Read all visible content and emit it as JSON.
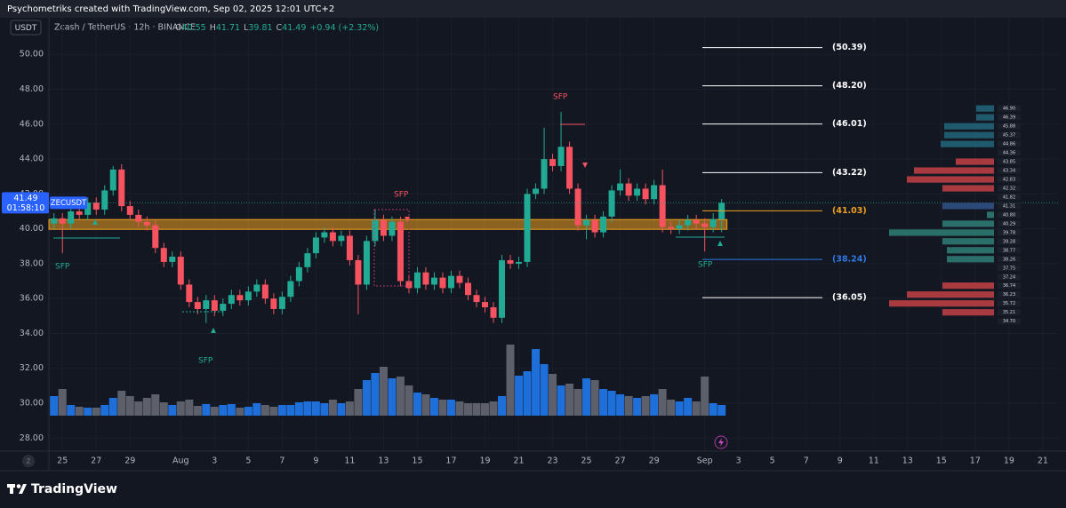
{
  "header": {
    "credit": "Psychometriks created with TradingView.com, Sep 02, 2025 12:01 UTC+2",
    "brand": "TradingView"
  },
  "chart_data": {
    "type": "candlestick",
    "quote_currency": "USDT",
    "symbol": "Zcash / TetherUS · 12h · BINANCE",
    "ticker": "ZECUSDT",
    "legend_labels": [
      "O",
      "H",
      "L",
      "C"
    ],
    "change": "+0.94 (+2.32%)",
    "countdown": "01:58:10",
    "up_color": "#22ab94",
    "down_color": "#f7525f",
    "volume_up_color": "#1e6fd9",
    "volume_down_color": "#5d606b",
    "x": [
      -0.5,
      0,
      0.5,
      1,
      1.5,
      2,
      2.5,
      3,
      3.5,
      4,
      4.5,
      5,
      5.5,
      6,
      6.5,
      7,
      7.5,
      8,
      8.5,
      9,
      9.5,
      10,
      10.5,
      11,
      11.5,
      12,
      12.5,
      13,
      13.5,
      14,
      14.5,
      15,
      15.5,
      16,
      16.5,
      17,
      17.5,
      18,
      18.5,
      19,
      19.5,
      20,
      20.5,
      21,
      21.5,
      22,
      22.5,
      23,
      23.5,
      24,
      24.5,
      25,
      25.5,
      26,
      26.5,
      27,
      27.5,
      28,
      28.5,
      29,
      29.5,
      30,
      30.5,
      31,
      31.5,
      32,
      32.5,
      33,
      33.5,
      34,
      34.5,
      35,
      35.5,
      36,
      36.5,
      37,
      37.5,
      38,
      38.5,
      39
    ],
    "open": [
      40.3,
      40.6,
      40.3,
      41.0,
      40.8,
      41.5,
      41.1,
      42.2,
      43.4,
      41.3,
      40.8,
      40.4,
      40.2,
      38.9,
      38.1,
      38.4,
      36.8,
      35.8,
      35.4,
      35.9,
      35.3,
      35.7,
      36.2,
      35.9,
      36.4,
      36.8,
      36.0,
      35.4,
      36.1,
      37.0,
      37.8,
      38.6,
      39.5,
      39.8,
      39.3,
      39.6,
      38.2,
      36.8,
      39.3,
      40.5,
      39.6,
      40.4,
      37.0,
      36.6,
      37.5,
      36.8,
      37.2,
      36.6,
      37.3,
      36.9,
      36.2,
      35.8,
      35.5,
      34.9,
      38.2,
      38.0,
      38.1,
      42.0,
      42.3,
      44.0,
      43.6,
      44.7,
      42.3,
      40.2,
      40.5,
      39.8,
      40.7,
      42.2,
      42.6,
      41.9,
      42.3,
      41.7,
      42.5,
      40.1,
      40.0,
      40.2,
      40.5,
      40.3,
      40.1,
      40.55
    ],
    "high": [
      40.9,
      40.9,
      41.3,
      41.3,
      41.8,
      41.8,
      42.5,
      43.6,
      43.7,
      41.6,
      41.1,
      40.7,
      40.5,
      39.2,
      38.7,
      38.7,
      37.1,
      36.1,
      36.2,
      36.2,
      36.0,
      36.5,
      36.5,
      36.7,
      37.1,
      37.1,
      36.3,
      36.4,
      37.3,
      38.1,
      38.9,
      39.8,
      40.1,
      40.1,
      39.9,
      39.9,
      38.5,
      39.6,
      41.1,
      40.8,
      40.7,
      40.7,
      37.3,
      37.8,
      37.8,
      37.5,
      37.5,
      37.6,
      37.6,
      37.2,
      36.5,
      36.1,
      35.8,
      38.5,
      38.5,
      38.4,
      42.3,
      42.6,
      45.8,
      44.3,
      46.7,
      45.0,
      42.6,
      40.8,
      40.8,
      41.0,
      42.5,
      43.4,
      42.9,
      42.6,
      42.6,
      42.8,
      43.4,
      40.4,
      40.5,
      40.8,
      40.8,
      40.6,
      40.9,
      41.71
    ],
    "low": [
      40.0,
      38.6,
      40.0,
      40.5,
      40.5,
      40.8,
      40.8,
      41.9,
      41.0,
      40.5,
      40.1,
      39.9,
      38.6,
      37.8,
      37.8,
      36.5,
      35.5,
      35.1,
      34.6,
      35.0,
      35.0,
      35.4,
      35.6,
      35.6,
      36.1,
      35.7,
      35.1,
      35.1,
      35.8,
      36.7,
      37.5,
      38.3,
      39.2,
      39.0,
      39.0,
      37.9,
      35.1,
      36.5,
      39.0,
      39.3,
      39.3,
      36.7,
      36.3,
      36.3,
      36.5,
      36.5,
      36.3,
      36.3,
      36.6,
      35.9,
      35.5,
      35.2,
      34.6,
      34.6,
      37.7,
      37.7,
      37.8,
      41.7,
      42.0,
      43.3,
      43.3,
      42.0,
      39.9,
      39.4,
      39.5,
      39.5,
      40.4,
      41.9,
      41.6,
      41.6,
      41.4,
      41.4,
      39.8,
      39.7,
      39.7,
      39.9,
      40.0,
      38.7,
      39.8,
      39.81
    ],
    "close": [
      40.6,
      40.3,
      41.0,
      40.8,
      41.5,
      41.1,
      42.2,
      43.4,
      41.3,
      40.8,
      40.4,
      40.2,
      38.9,
      38.1,
      38.4,
      36.8,
      35.8,
      35.4,
      35.9,
      35.3,
      35.7,
      36.2,
      35.9,
      36.4,
      36.8,
      36.0,
      35.4,
      36.1,
      37.0,
      37.8,
      38.6,
      39.5,
      39.8,
      39.3,
      39.6,
      38.2,
      36.8,
      39.3,
      40.5,
      39.6,
      40.4,
      37.0,
      36.6,
      37.5,
      36.8,
      37.2,
      36.6,
      37.3,
      36.9,
      36.2,
      35.8,
      35.5,
      34.9,
      38.2,
      38.0,
      38.1,
      42.0,
      42.3,
      44.0,
      43.6,
      44.7,
      42.3,
      40.2,
      40.5,
      39.8,
      40.7,
      42.2,
      42.6,
      41.9,
      42.3,
      41.7,
      42.5,
      40.1,
      40.0,
      40.2,
      40.5,
      40.3,
      40.1,
      40.55,
      41.49
    ],
    "volume": [
      22,
      30,
      12,
      10,
      9,
      9,
      12,
      20,
      28,
      22,
      16,
      20,
      24,
      15,
      12,
      16,
      18,
      11,
      13,
      10,
      12,
      13,
      9,
      10,
      14,
      12,
      10,
      12,
      12,
      15,
      16,
      16,
      14,
      18,
      14,
      16,
      30,
      40,
      48,
      55,
      42,
      44,
      34,
      26,
      24,
      20,
      18,
      18,
      16,
      14,
      14,
      14,
      16,
      22,
      80,
      45,
      50,
      75,
      58,
      47,
      34,
      36,
      30,
      42,
      40,
      30,
      28,
      24,
      22,
      20,
      22,
      24,
      30,
      18,
      16,
      20,
      16,
      44,
      14,
      12
    ],
    "xlim": [
      -0.8,
      58.9
    ],
    "ylim": [
      27.25,
      52.1
    ],
    "xticks": [
      {
        "value": 0,
        "label": "25"
      },
      {
        "value": 2,
        "label": "27"
      },
      {
        "value": 4,
        "label": "29"
      },
      {
        "value": 7,
        "label": "Aug"
      },
      {
        "value": 9,
        "label": "3"
      },
      {
        "value": 11,
        "label": "5"
      },
      {
        "value": 13,
        "label": "7"
      },
      {
        "value": 15,
        "label": "9"
      },
      {
        "value": 17,
        "label": "11"
      },
      {
        "value": 19,
        "label": "13"
      },
      {
        "value": 21,
        "label": "15"
      },
      {
        "value": 23,
        "label": "17"
      },
      {
        "value": 25,
        "label": "19"
      },
      {
        "value": 27,
        "label": "21"
      },
      {
        "value": 29,
        "label": "23"
      },
      {
        "value": 31,
        "label": "25"
      },
      {
        "value": 33,
        "label": "27"
      },
      {
        "value": 35,
        "label": "29"
      },
      {
        "value": 38,
        "label": "Sep"
      },
      {
        "value": 40,
        "label": "3"
      },
      {
        "value": 42,
        "label": "5"
      },
      {
        "value": 44,
        "label": "7"
      },
      {
        "value": 46,
        "label": "9"
      },
      {
        "value": 48,
        "label": "11"
      },
      {
        "value": 50,
        "label": "13"
      },
      {
        "value": 52,
        "label": "15"
      },
      {
        "value": 54,
        "label": "17"
      },
      {
        "value": 56,
        "label": "19"
      },
      {
        "value": 58,
        "label": "21"
      }
    ],
    "yticks": [
      {
        "value": 50,
        "label": "50.00"
      },
      {
        "value": 48,
        "label": "48.00"
      },
      {
        "value": 46,
        "label": "46.00"
      },
      {
        "value": 44,
        "label": "44.00"
      },
      {
        "value": 42,
        "label": "42.00"
      },
      {
        "value": 40,
        "label": "40.00"
      },
      {
        "value": 38,
        "label": "38.00"
      },
      {
        "value": 36,
        "label": "36.00"
      },
      {
        "value": 34,
        "label": "34.00"
      },
      {
        "value": 32,
        "label": "32.00"
      },
      {
        "value": 30,
        "label": "30.00"
      },
      {
        "value": 28,
        "label": "28.00"
      }
    ],
    "zone": {
      "low": 39.97,
      "high": 40.53,
      "color": "#f0a020"
    },
    "levels": [
      {
        "value": 50.39,
        "label": "(50.39)",
        "color": "#ffffff"
      },
      {
        "value": 48.2,
        "label": "(48.20)",
        "color": "#ffffff"
      },
      {
        "value": 46.01,
        "label": "(46.01)",
        "color": "#ffffff"
      },
      {
        "value": 43.22,
        "label": "(43.22)",
        "color": "#ffffff"
      },
      {
        "value": 41.03,
        "label": "(41.03)",
        "color": "#f0a020"
      },
      {
        "value": 38.24,
        "label": "(38.24)",
        "color": "#2f7ae5"
      },
      {
        "value": 36.05,
        "label": "(36.05)",
        "color": "#ffffff"
      }
    ],
    "annotations": [
      "SFP",
      "SFP",
      "SFP",
      "SFP",
      "SFP"
    ],
    "order_book": {
      "prices": [
        {
          "value": 46.9,
          "label": "46.90"
        },
        {
          "value": 46.39,
          "label": "46.39"
        },
        {
          "value": 45.88,
          "label": "45.88"
        },
        {
          "value": 45.37,
          "label": "45.37"
        },
        {
          "value": 44.86,
          "label": "44.86"
        },
        {
          "value": 44.36,
          "label": "44.36"
        },
        {
          "value": 43.85,
          "label": "43.85"
        },
        {
          "value": 43.34,
          "label": "43.34"
        },
        {
          "value": 42.83,
          "label": "42.83"
        },
        {
          "value": 42.32,
          "label": "42.32"
        },
        {
          "value": 41.82,
          "label": "41.82"
        },
        {
          "value": 41.31,
          "label": "41.31"
        },
        {
          "value": 40.8,
          "label": "40.80"
        },
        {
          "value": 40.29,
          "label": "40.29"
        },
        {
          "value": 39.78,
          "label": "39.78"
        },
        {
          "value": 39.28,
          "label": "39.28"
        },
        {
          "value": 38.77,
          "label": "38.77"
        },
        {
          "value": 38.26,
          "label": "38.26"
        },
        {
          "value": 37.75,
          "label": "37.75"
        },
        {
          "value": 37.24,
          "label": "37.24"
        },
        {
          "value": 36.74,
          "label": "36.74"
        },
        {
          "value": 36.23,
          "label": "36.23"
        },
        {
          "value": 35.72,
          "label": "35.72"
        },
        {
          "value": 35.21,
          "label": "35.21"
        },
        {
          "value": 34.7,
          "label": "34.70"
        }
      ],
      "sizes": [
        20,
        20,
        56,
        56,
        60,
        null,
        43,
        90,
        98,
        58,
        null,
        58,
        8,
        58,
        118,
        58,
        53,
        53,
        null,
        null,
        58,
        98,
        118,
        58,
        null
      ],
      "colors": [
        "#1f5a6e",
        "#1f5a6e",
        "#1f5a6e",
        "#1f5a6e",
        "#1f5a6e",
        null,
        "#a83a40",
        "#a83a40",
        "#a83a40",
        "#a83a40",
        null,
        "#2b4a7a",
        "#2a6f69",
        "#2a6f69",
        "#2a6f69",
        "#2a6f69",
        "#2a6f69",
        "#2a6f69",
        null,
        null,
        "#a83a40",
        "#a83a40",
        "#a83a40",
        "#a83a40",
        null
      ]
    }
  }
}
